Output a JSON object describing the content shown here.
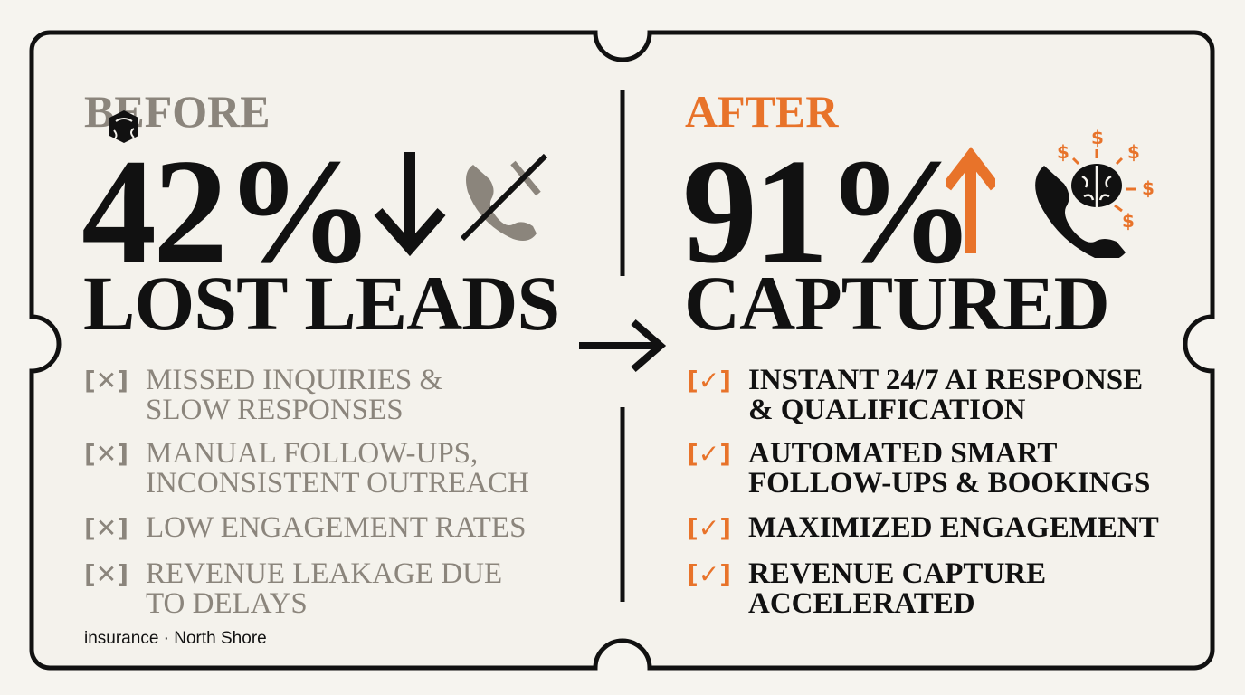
{
  "colors": {
    "background": "#f6f4ef",
    "muted": "#8b857c",
    "accent": "#e8732a",
    "ink": "#111111"
  },
  "before": {
    "label": "BEFORE",
    "stat": "42%",
    "trend_icon": "arrow-down-icon",
    "icon": "phone-crossed-out-icon",
    "headline": "LOST LEADS",
    "items": [
      {
        "marker": "[✕]",
        "lines": [
          "Missed inquiries &",
          "slow responses"
        ]
      },
      {
        "marker": "[✕]",
        "lines": [
          "Manual follow-ups,",
          "inconsistent outreach"
        ]
      },
      {
        "marker": "[✕]",
        "lines": [
          "Low engagement rates"
        ]
      },
      {
        "marker": "[✕]",
        "lines": [
          "Revenue leakage due",
          "to delays"
        ]
      }
    ],
    "footer": "insurance · North Shore"
  },
  "transition_icon": "arrow-right-icon",
  "after": {
    "label": "AFTER",
    "stat": "91%",
    "trend_icon": "arrow-up-icon",
    "icon": "phone-brain-dollar-icon",
    "dollar": "$",
    "headline": "CAPTURED",
    "items": [
      {
        "marker": "[✓]",
        "lines": [
          "Instant 24/7 AI response",
          "& qualification"
        ]
      },
      {
        "marker": "[✓]",
        "lines": [
          "Automated smart",
          "follow-ups & bookings"
        ]
      },
      {
        "marker": "[✓]",
        "lines": [
          "Maximized engagement"
        ]
      },
      {
        "marker": "[✓]",
        "lines": [
          "Revenue capture",
          "accelerated"
        ]
      }
    ]
  }
}
